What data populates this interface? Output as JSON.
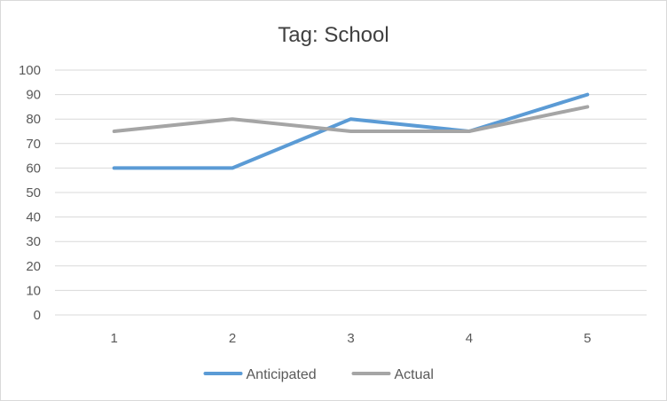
{
  "chart_data": {
    "type": "line",
    "title": "Tag: School",
    "categories": [
      "1",
      "2",
      "3",
      "4",
      "5"
    ],
    "series": [
      {
        "name": "Anticipated",
        "values": [
          60,
          60,
          80,
          75,
          90
        ],
        "color": "#5b9bd5"
      },
      {
        "name": "Actual",
        "values": [
          75,
          80,
          75,
          75,
          85
        ],
        "color": "#a5a5a5"
      }
    ],
    "ylim": [
      0,
      100
    ],
    "yticks": [
      "0",
      "10",
      "20",
      "30",
      "40",
      "50",
      "60",
      "70",
      "80",
      "90",
      "100"
    ],
    "grid": true,
    "gridColor": "#d9d9d9",
    "axisColor": "#d9d9d9",
    "legend_position": "bottom"
  }
}
